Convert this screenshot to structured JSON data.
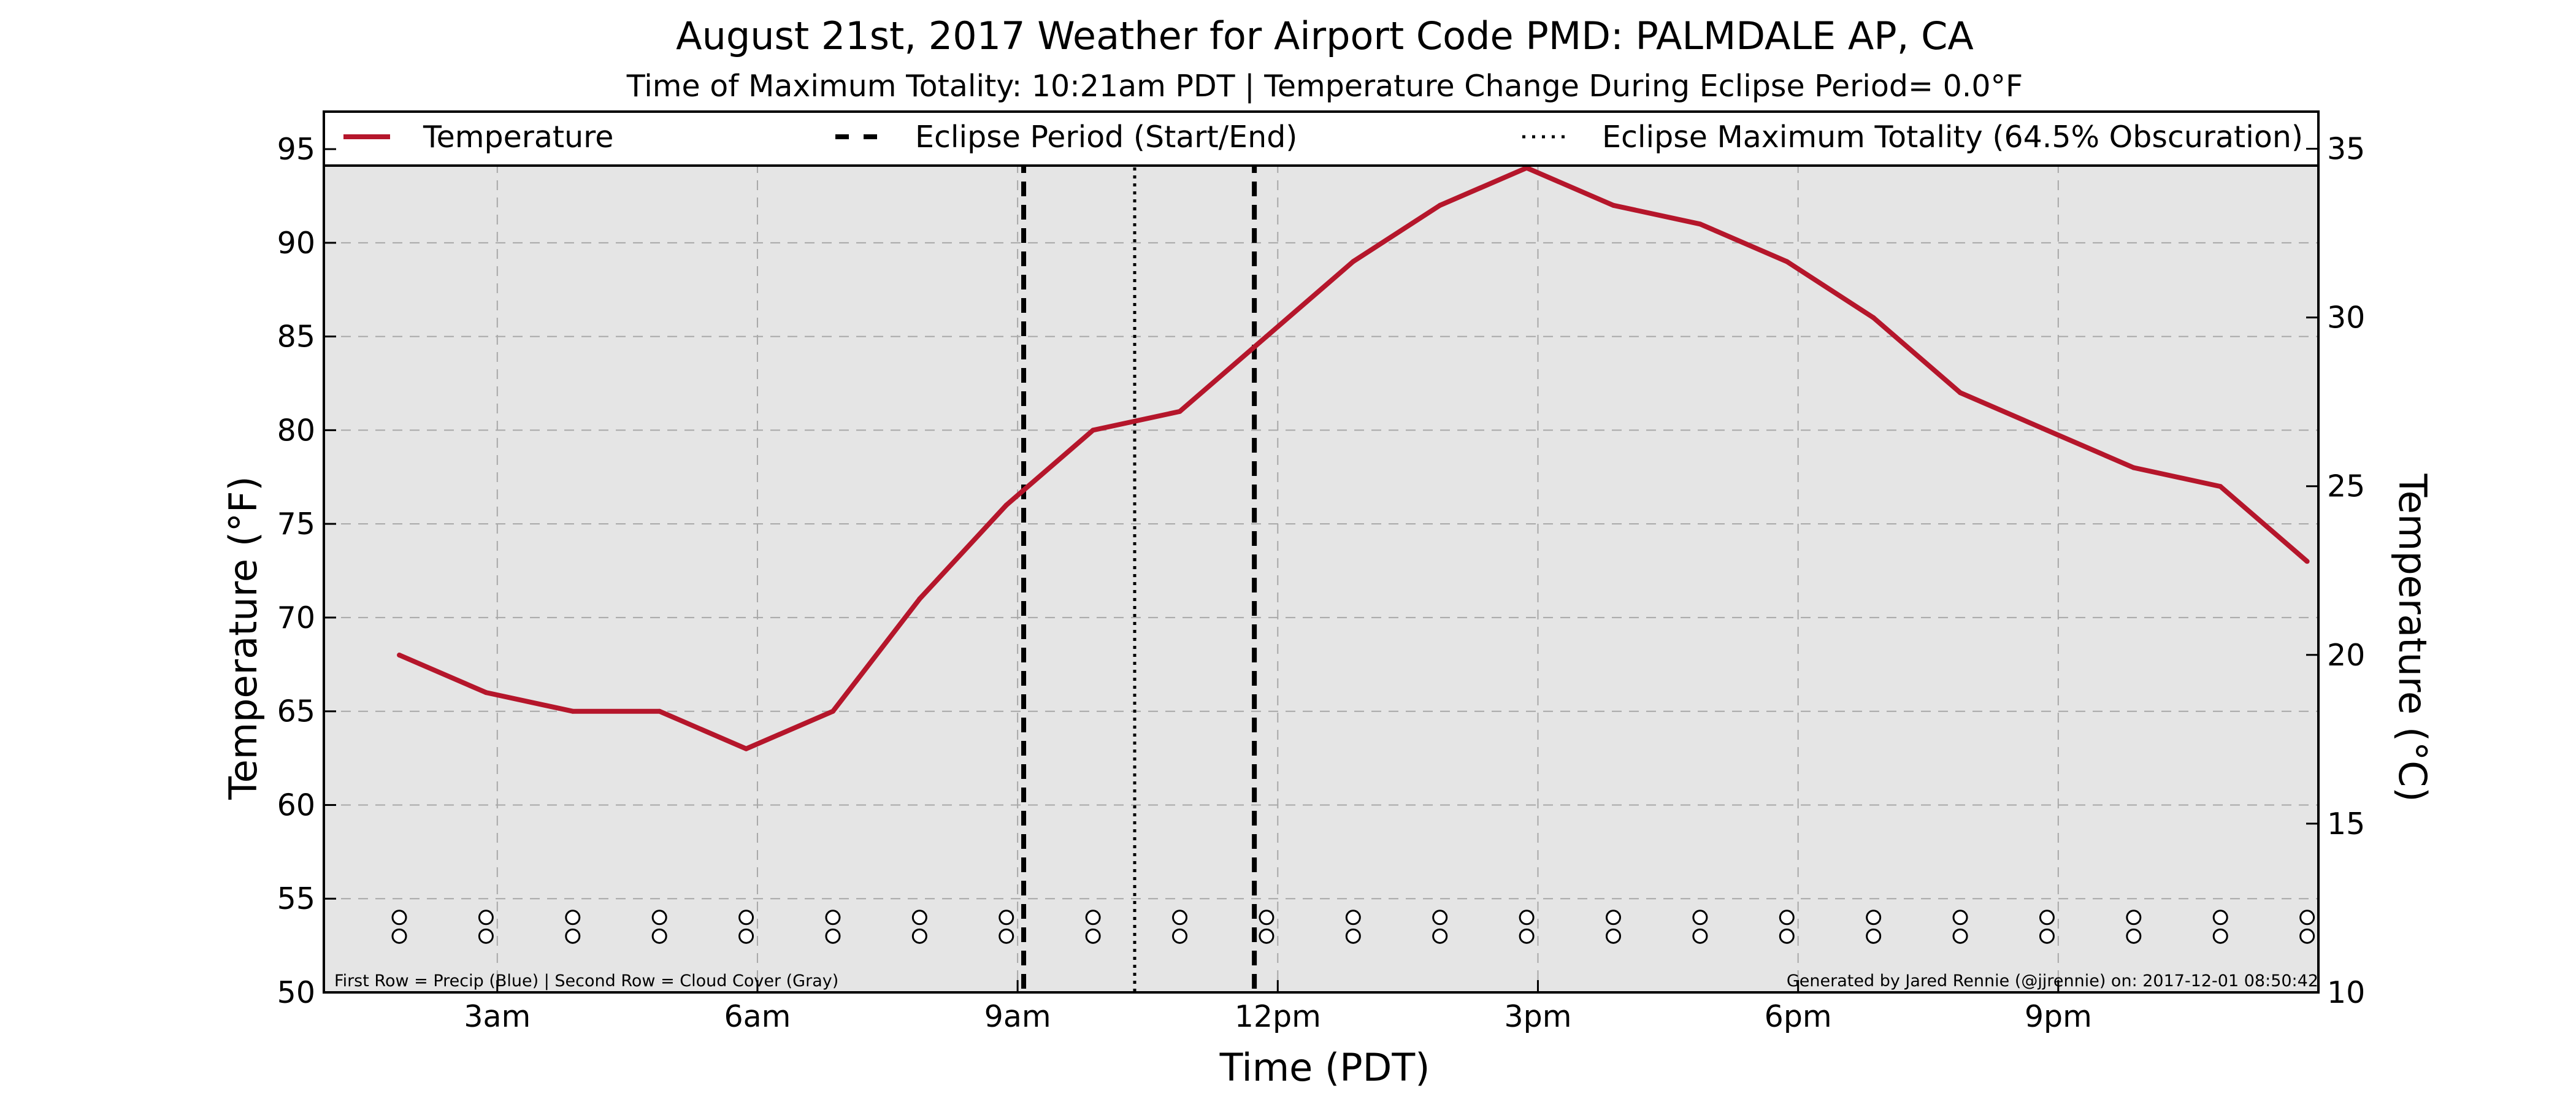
{
  "chart_data": {
    "type": "line",
    "title": "August 21st, 2017 Weather for Airport Code PMD: PALMDALE AP, CA",
    "subtitle": "Time of Maximum Totality: 10:21am PDT | Temperature Change During Eclipse Period= 0.0°F",
    "xlabel": "Time (PDT)",
    "ylabel": "Temperature (°F)",
    "ylabel_right": "Temperature (°C)",
    "x_tick_labels": [
      "3am",
      "6am",
      "9am",
      "12pm",
      "3pm",
      "6pm",
      "9pm"
    ],
    "x_tick_hours": [
      3,
      6,
      9,
      12,
      15,
      18,
      21
    ],
    "xlim_hours": [
      1,
      24
    ],
    "ylim": [
      50,
      97
    ],
    "yticks": [
      50,
      55,
      60,
      65,
      70,
      75,
      80,
      85,
      90,
      95
    ],
    "y2lim_c": [
      10,
      36.1
    ],
    "y2ticks": [
      10,
      15,
      20,
      25,
      30,
      35
    ],
    "grid": true,
    "legend_placement": "top",
    "series": [
      {
        "name": "Temperature",
        "color": "#b5162b",
        "x_hours": [
          1.87,
          2.87,
          3.87,
          4.87,
          5.87,
          6.87,
          7.87,
          8.87,
          9.87,
          10.87,
          11.87,
          12.87,
          13.87,
          14.87,
          15.87,
          16.87,
          17.87,
          18.87,
          19.87,
          20.87,
          21.87,
          22.87,
          23.87
        ],
        "values": [
          68,
          66,
          65,
          65,
          63,
          65,
          71,
          76,
          80,
          81,
          85,
          89,
          92,
          94,
          92,
          91,
          89,
          86,
          82,
          80,
          78,
          77,
          73
        ]
      }
    ],
    "eclipse": {
      "start_hour": 9.07,
      "end_hour": 11.73,
      "max_totality_hour": 10.35,
      "legend_period": "Eclipse Period (Start/End)",
      "legend_max": "Eclipse Maximum Totality (64.5% Obscuration)"
    },
    "markers": {
      "row1_label": "Precip",
      "row2_label": "Cloud Cover",
      "x_hours": [
        1.87,
        2.87,
        3.87,
        4.87,
        5.87,
        6.87,
        7.87,
        8.87,
        9.87,
        10.87,
        11.87,
        12.87,
        13.87,
        14.87,
        15.87,
        16.87,
        17.87,
        18.87,
        19.87,
        20.87,
        21.87,
        22.87,
        23.87
      ],
      "row1_y": 54,
      "row2_y": 53
    },
    "footer_left": "First Row = Precip (Blue) | Second Row = Cloud Cover (Gray)",
    "footer_right": "Generated by Jared Rennie (@jjrennie) on: 2017-12-01 08:50:42"
  },
  "colors": {
    "plot_background": "#e5e5e5",
    "grid": "#a8a8a8",
    "temperature_line": "#b5162b",
    "eclipse_lines": "#000000"
  }
}
